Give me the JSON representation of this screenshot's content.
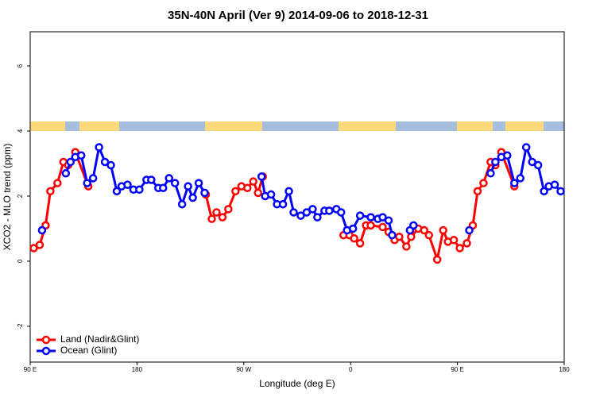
{
  "chart_data": {
    "type": "line",
    "title": "35N-40N April (Ver 9)   2014-09-06 to 2018-12-31",
    "x_label": "Longitude (deg E)",
    "y_label": "XCO2 - MLO trend (ppm)",
    "xlim": [
      90,
      540
    ],
    "ylim": [
      -3.1,
      7.05
    ],
    "xticks": [
      {
        "value": 90,
        "label": "90 E"
      },
      180,
      {
        "value": 270,
        "label": "90 W"
      },
      {
        "value": 360,
        "label": "0"
      },
      {
        "value": 450,
        "label": "90 E"
      },
      {
        "value": 540,
        "label": "180"
      }
    ],
    "yticks": [
      -2,
      0,
      2,
      4,
      6
    ],
    "grid": false,
    "legend": "bottomleft",
    "series": [
      {
        "name": "Land (Nadir&Glint)",
        "color": "#ff0000",
        "x": [
          93,
          98,
          103,
          107,
          113,
          118,
          122,
          128,
          139,
          null,
          238,
          243,
          247,
          252,
          257,
          263,
          268,
          273,
          278,
          282,
          286,
          null,
          354,
          359,
          363,
          368,
          373,
          377,
          387,
          392,
          397,
          401,
          407,
          411,
          417,
          422,
          426,
          433,
          438,
          442,
          447,
          452,
          458,
          463,
          467,
          472,
          478,
          482,
          487,
          498
        ],
        "values": [
          0.4,
          0.5,
          1.1,
          2.15,
          2.4,
          3.05,
          2.95,
          3.35,
          2.3,
          null,
          2.05,
          1.3,
          1.5,
          1.35,
          1.6,
          2.15,
          2.3,
          2.25,
          2.45,
          2.1,
          2.6,
          null,
          0.8,
          0.8,
          0.7,
          0.55,
          1.1,
          1.1,
          1.05,
          0.9,
          0.65,
          0.75,
          0.45,
          0.75,
          1.0,
          0.95,
          0.8,
          0.05,
          0.95,
          0.6,
          0.65,
          0.4,
          0.55,
          1.1,
          2.15,
          2.4,
          3.05,
          2.95,
          3.35,
          2.3
        ]
      },
      {
        "name": "Ocean (Glint)",
        "color": "#0000ff",
        "x": [
          100,
          null,
          120,
          124,
          128,
          133,
          138,
          143,
          148,
          153,
          158,
          163,
          167,
          172,
          177,
          182,
          188,
          192,
          198,
          202,
          207,
          212,
          218,
          223,
          227,
          232,
          237,
          null,
          285,
          288,
          293,
          298,
          303,
          308,
          312,
          318,
          323,
          328,
          332,
          338,
          342,
          348,
          352,
          357,
          362,
          368,
          377,
          383,
          387,
          392,
          395,
          null,
          410,
          413,
          null,
          460,
          null,
          478,
          482,
          487,
          492,
          498,
          503,
          508,
          513,
          518,
          523,
          527,
          532,
          537
        ],
        "values": [
          0.95,
          null,
          2.7,
          3.05,
          3.2,
          3.25,
          2.4,
          2.55,
          3.5,
          3.05,
          2.95,
          2.15,
          2.3,
          2.35,
          2.2,
          2.2,
          2.5,
          2.5,
          2.25,
          2.25,
          2.55,
          2.4,
          1.75,
          2.3,
          1.95,
          2.4,
          2.1,
          null,
          2.6,
          2.0,
          2.05,
          1.75,
          1.75,
          2.15,
          1.5,
          1.4,
          1.5,
          1.6,
          1.35,
          1.55,
          1.55,
          1.6,
          1.5,
          0.95,
          1.0,
          1.4,
          1.35,
          1.3,
          1.35,
          1.25,
          0.8,
          null,
          0.95,
          1.1,
          null,
          0.95,
          null,
          2.7,
          3.05,
          3.2,
          3.25,
          2.4,
          2.55,
          3.5,
          3.05,
          2.95,
          2.15,
          2.3,
          2.35,
          2.15
        ]
      }
    ]
  }
}
